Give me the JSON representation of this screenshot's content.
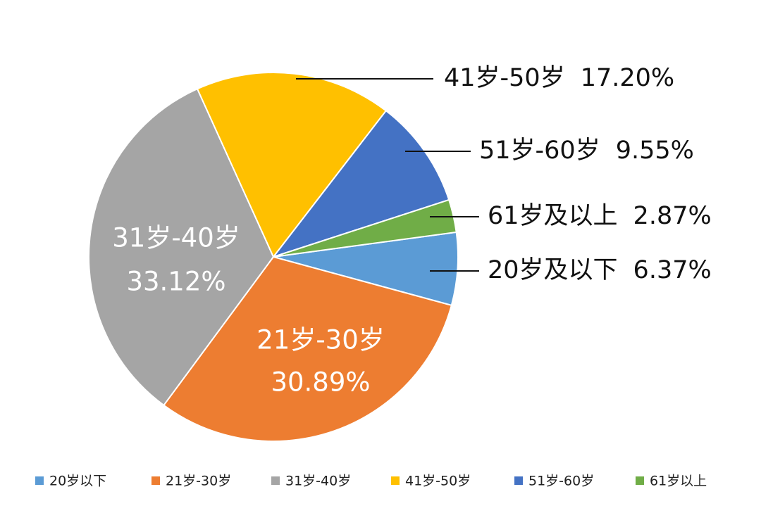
{
  "chart_data": {
    "type": "pie",
    "categories": [
      "20岁以下",
      "21岁-30岁",
      "31岁-40岁",
      "41岁-50岁",
      "51岁-60岁",
      "61岁以上"
    ],
    "labels": [
      "20岁及以下",
      "21岁-30岁",
      "31岁-40岁",
      "41岁-50岁",
      "51岁-60岁",
      "61岁及以上"
    ],
    "values": [
      6.37,
      30.89,
      33.12,
      17.2,
      9.55,
      2.87
    ],
    "value_labels": [
      "6.37%",
      "30.89%",
      "33.12%",
      "17.20%",
      "9.55%",
      "2.87%"
    ],
    "colors": [
      "#5b9bd5",
      "#ed7d31",
      "#a5a5a5",
      "#ffc000",
      "#4472c4",
      "#70ad47"
    ],
    "legend": "bottom"
  }
}
